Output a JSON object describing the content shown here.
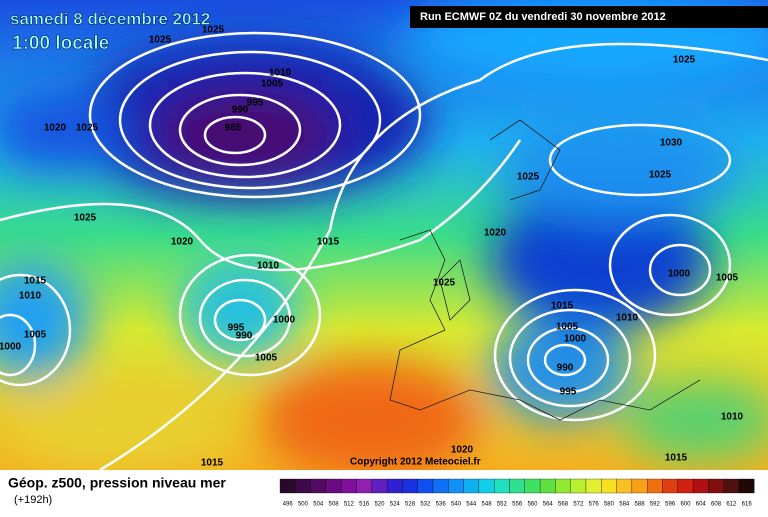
{
  "header": {
    "date": "samedi 8 décembre 2012",
    "time": "1:00 locale",
    "run": "Run ECMWF 0Z du vendredi 30 novembre 2012"
  },
  "map": {
    "isobar_labels": [
      1025,
      1025,
      1010,
      1005,
      995,
      990,
      985,
      1020,
      1025,
      1025,
      1020,
      1015,
      1010,
      1000,
      995,
      990,
      1005,
      1015,
      1010,
      1005,
      1000,
      1025,
      1020,
      1025,
      1030,
      1025,
      1025,
      1000,
      1005,
      1015,
      1010,
      1005,
      1000,
      990,
      995,
      1010,
      1020,
      1015,
      1015
    ],
    "copyright": "Copyright 2012 Meteociel.fr"
  },
  "legend": {
    "title": "Géop. z500, pression niveau mer",
    "lead": "(+192h)",
    "scale": [
      496,
      500,
      504,
      508,
      512,
      516,
      520,
      524,
      528,
      532,
      536,
      540,
      544,
      548,
      552,
      556,
      560,
      564,
      568,
      572,
      576,
      580,
      584,
      588,
      592,
      596,
      600,
      604,
      608,
      612,
      616
    ]
  }
}
